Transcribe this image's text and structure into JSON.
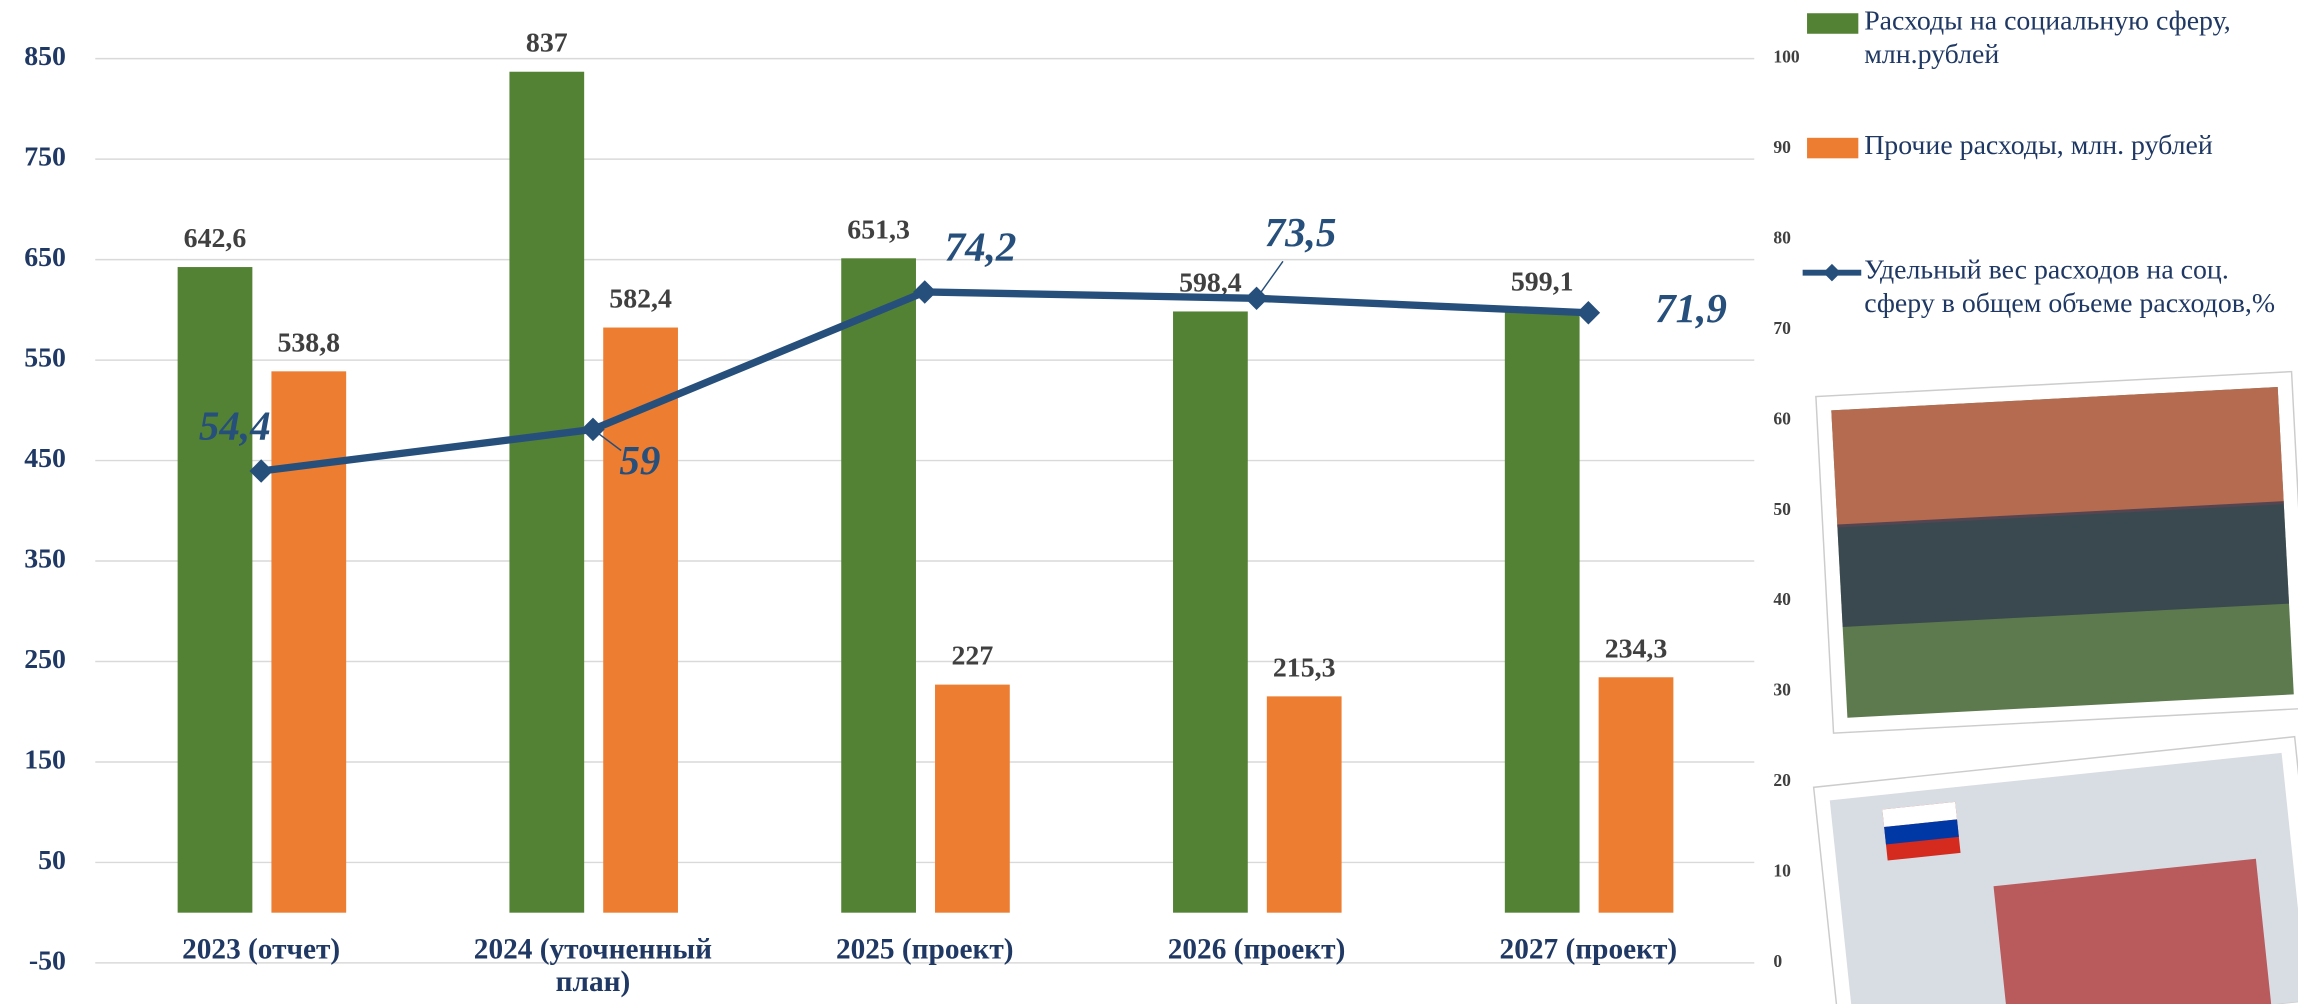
{
  "chart_data": {
    "type": "bar",
    "categories": [
      "2023 (отчет)",
      "2024 (уточненный план)",
      "2025 (проект)",
      "2026 (проект)",
      "2027 (проект)"
    ],
    "series": [
      {
        "name": "Расходы на социальную сферу, млн.рублей",
        "color": "#548235",
        "values": [
          642.6,
          837,
          651.3,
          598.4,
          599.1
        ],
        "value_labels": [
          "642,6",
          "837",
          "651,3",
          "598,4",
          "599,1"
        ]
      },
      {
        "name": "Прочие расходы, млн. рублей",
        "color": "#ed7d31",
        "values": [
          538.8,
          582.4,
          227,
          215.3,
          234.3
        ],
        "value_labels": [
          "538,8",
          "582,4",
          "227",
          "215,3",
          "234,3"
        ]
      },
      {
        "name": "Удельный вес расходов на соц. сферу в общем объеме расходов,%",
        "color": "#264f7c",
        "type": "line",
        "axis": "y2",
        "values": [
          54.4,
          59,
          74.2,
          73.5,
          71.9
        ],
        "value_labels": [
          "54,4",
          "59",
          "74,2",
          "73,5",
          "71,9"
        ]
      }
    ],
    "ylim": [
      -50,
      850
    ],
    "yticks": [
      -50,
      50,
      150,
      250,
      350,
      450,
      550,
      650,
      750,
      850
    ],
    "y2lim": [
      0,
      100
    ],
    "y2ticks": [
      0,
      10,
      20,
      30,
      40,
      50,
      60,
      70,
      80,
      90,
      100
    ],
    "grid": true,
    "legend": "right"
  }
}
